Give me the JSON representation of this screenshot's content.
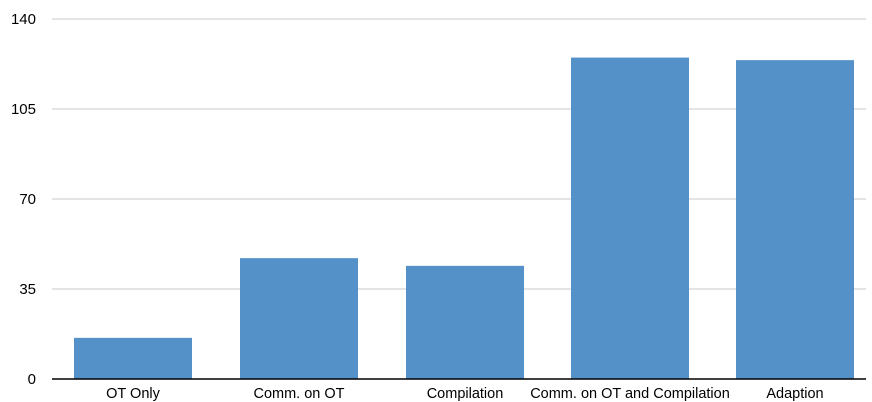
{
  "chart_data": {
    "type": "bar",
    "categories": [
      "OT Only",
      "Comm. on OT",
      "Compilation",
      "Comm. on OT and Compilation",
      "Adaption"
    ],
    "values": [
      16,
      47,
      44,
      125,
      124
    ],
    "ylim": [
      0,
      140
    ],
    "yticks": [
      0,
      35,
      70,
      105,
      140
    ],
    "ytick_labels": [
      "0",
      "35",
      "70",
      "105",
      "140"
    ],
    "grid": true,
    "bar_color": "#5591c9",
    "grid_color": "#c8c8c8",
    "axis_color": "#000000"
  }
}
